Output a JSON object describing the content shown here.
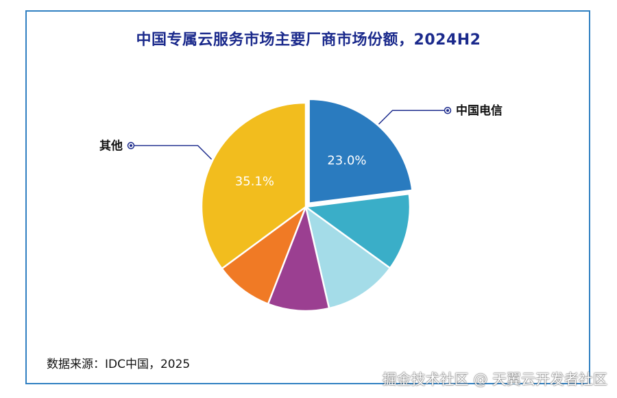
{
  "chart_data": {
    "type": "pie",
    "title": "中国专属云服务市场主要厂商市场份额，2024H2",
    "source": "数据来源：IDC中国，2025",
    "slices": [
      {
        "label": "中国电信",
        "value": 23.0,
        "display": "23.0%",
        "color": "#2a7bbf",
        "exploded": true
      },
      {
        "label": "",
        "value": 12.0,
        "display": "",
        "color": "#3aaec8",
        "exploded": false
      },
      {
        "label": "",
        "value": 11.4,
        "display": "",
        "color": "#a4dce8",
        "exploded": false
      },
      {
        "label": "",
        "value": 9.5,
        "display": "",
        "color": "#9b3f91",
        "exploded": false
      },
      {
        "label": "",
        "value": 9.0,
        "display": "",
        "color": "#f07a25",
        "exploded": false
      },
      {
        "label": "其他",
        "value": 35.1,
        "display": "35.1%",
        "color": "#f2bd1e",
        "exploded": false
      }
    ],
    "start_angle": "12 o'clock",
    "direction": "clockwise"
  },
  "watermark": "掘金技术社区 @ 天翼云开发者社区",
  "colors": {
    "frame": "#2f7fc1",
    "title": "#1b2a8c",
    "leader": "#1b2a8c"
  }
}
